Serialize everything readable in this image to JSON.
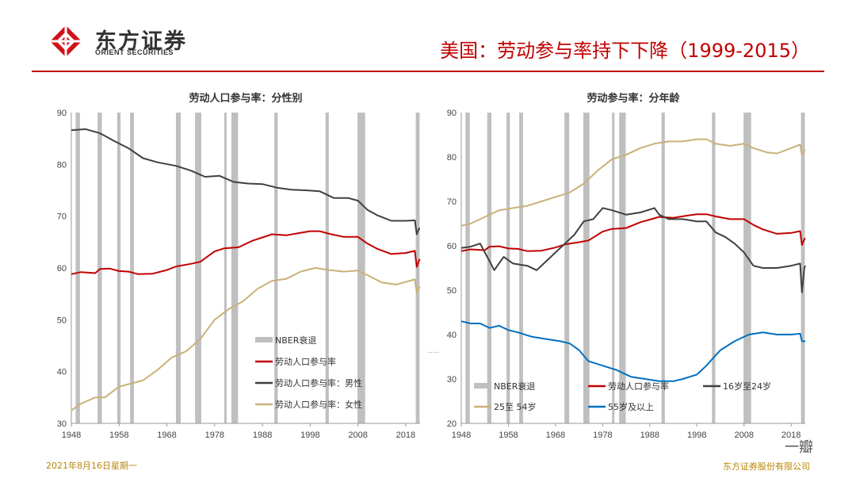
{
  "header": {
    "logo_cn": "东方证券",
    "logo_en": "ORIENT SECURITIES",
    "title": "美国：劳动参与率持下下降（1999-2015）",
    "brand_color": "#c00000"
  },
  "footer": {
    "date": "2021年8月16日星期一",
    "company": "东方证券股份有限公司",
    "watermark": "一瓣"
  },
  "chart_data": [
    {
      "type": "line",
      "title": "劳动人口参与率：分性别",
      "xlim": [
        1948,
        2021
      ],
      "ylim": [
        30,
        90
      ],
      "xticks": [
        1948,
        1958,
        1968,
        1978,
        1988,
        1998,
        2008,
        2018
      ],
      "yticks": [
        30,
        40,
        50,
        60,
        70,
        80,
        90
      ],
      "recessions": [
        [
          1948.9,
          1949.8
        ],
        [
          1953.5,
          1954.4
        ],
        [
          1957.6,
          1958.3
        ],
        [
          1960.3,
          1961.1
        ],
        [
          1969.9,
          1970.9
        ],
        [
          1973.9,
          1975.2
        ],
        [
          1980.0,
          1980.5
        ],
        [
          1981.5,
          1982.9
        ],
        [
          1990.5,
          1991.2
        ],
        [
          2001.2,
          2001.9
        ],
        [
          2007.9,
          2009.5
        ],
        [
          2020.1,
          2020.9
        ]
      ],
      "legend": [
        {
          "name": "NBER衰退",
          "color": "#bfbfbf",
          "kind": "bar"
        },
        {
          "name": "劳动人口参与率",
          "color": "#c00000",
          "kind": "line"
        },
        {
          "name": "劳动人口参与率：男性",
          "color": "#404040",
          "kind": "line"
        },
        {
          "name": "劳动人口参与率：女性",
          "color": "#c8b27a",
          "kind": "line"
        }
      ],
      "series": [
        {
          "name": "劳动人口参与率",
          "color": "#c00000",
          "x": [
            1948,
            1950,
            1953,
            1954,
            1956,
            1958,
            1960,
            1962,
            1965,
            1968,
            1970,
            1973,
            1975,
            1978,
            1980,
            1983,
            1986,
            1988,
            1990,
            1993,
            1996,
            1998,
            2000,
            2002,
            2005,
            2008,
            2010,
            2012,
            2015,
            2018,
            2019.9,
            2020.3,
            2020.8,
            2021
          ],
          "y": [
            58.8,
            59.2,
            59.0,
            59.8,
            59.9,
            59.4,
            59.3,
            58.8,
            58.9,
            59.6,
            60.3,
            60.8,
            61.2,
            63.2,
            63.8,
            64.0,
            65.3,
            65.9,
            66.5,
            66.3,
            66.8,
            67.1,
            67.1,
            66.6,
            66.0,
            66.0,
            64.7,
            63.7,
            62.7,
            62.9,
            63.3,
            60.2,
            61.5,
            61.7
          ]
        },
        {
          "name": "劳动人口参与率：男性",
          "color": "#404040",
          "x": [
            1948,
            1951,
            1954,
            1957,
            1960,
            1963,
            1966,
            1970,
            1973,
            1976,
            1979,
            1982,
            1985,
            1988,
            1991,
            1994,
            1997,
            2000,
            2003,
            2006,
            2008,
            2010,
            2012,
            2015,
            2018,
            2019.9,
            2020.3,
            2020.8,
            2021
          ],
          "y": [
            86.6,
            86.8,
            86.0,
            84.5,
            83.1,
            81.2,
            80.4,
            79.7,
            78.8,
            77.6,
            77.8,
            76.6,
            76.3,
            76.2,
            75.5,
            75.1,
            75.0,
            74.8,
            73.5,
            73.5,
            73.0,
            71.2,
            70.2,
            69.1,
            69.1,
            69.2,
            66.5,
            67.6,
            67.6
          ]
        },
        {
          "name": "劳动人口参与率：女性",
          "color": "#c8b27a",
          "x": [
            1948,
            1950,
            1953,
            1955,
            1958,
            1961,
            1963,
            1966,
            1969,
            1972,
            1975,
            1978,
            1981,
            1984,
            1987,
            1990,
            1993,
            1996,
            1999,
            2002,
            2005,
            2008,
            2010,
            2013,
            2016,
            2019.9,
            2020.3,
            2020.8,
            2021
          ],
          "y": [
            32.5,
            33.8,
            35.0,
            35.0,
            37.1,
            37.8,
            38.3,
            40.3,
            42.7,
            43.9,
            46.3,
            50.0,
            52.1,
            53.6,
            56.0,
            57.5,
            57.9,
            59.3,
            60.0,
            59.6,
            59.3,
            59.5,
            58.6,
            57.2,
            56.8,
            57.8,
            55.2,
            56.2,
            56.3
          ]
        }
      ]
    },
    {
      "type": "line",
      "title": "劳动参与率：分年龄",
      "xlim": [
        1948,
        2021
      ],
      "ylim": [
        20,
        90
      ],
      "xticks": [
        1948,
        1958,
        1968,
        1978,
        1988,
        1998,
        2008,
        2018
      ],
      "yticks": [
        20,
        30,
        40,
        50,
        60,
        70,
        80,
        90
      ],
      "recessions": [
        [
          1948.9,
          1949.8
        ],
        [
          1953.5,
          1954.4
        ],
        [
          1957.6,
          1958.3
        ],
        [
          1960.3,
          1961.1
        ],
        [
          1969.9,
          1970.9
        ],
        [
          1973.9,
          1975.2
        ],
        [
          1980.0,
          1980.5
        ],
        [
          1981.5,
          1982.9
        ],
        [
          1990.5,
          1991.2
        ],
        [
          2001.2,
          2001.9
        ],
        [
          2007.9,
          2009.5
        ],
        [
          2020.1,
          2020.9
        ]
      ],
      "legend": [
        {
          "name": "NBER衰退",
          "color": "#bfbfbf",
          "kind": "bar"
        },
        {
          "name": "劳动人口参与率",
          "color": "#c00000",
          "kind": "line"
        },
        {
          "name": "16岁至24岁",
          "color": "#404040",
          "kind": "line"
        },
        {
          "name": "25至 54岁",
          "color": "#c8b27a",
          "kind": "line"
        },
        {
          "name": "55岁及以上",
          "color": "#0070c0",
          "kind": "line"
        }
      ],
      "series": [
        {
          "name": "劳动人口参与率",
          "color": "#c00000",
          "x": [
            1948,
            1950,
            1953,
            1954,
            1956,
            1958,
            1960,
            1962,
            1965,
            1968,
            1970,
            1973,
            1975,
            1978,
            1980,
            1983,
            1986,
            1988,
            1990,
            1993,
            1996,
            1998,
            2000,
            2002,
            2005,
            2008,
            2010,
            2012,
            2015,
            2018,
            2019.9,
            2020.3,
            2020.8,
            2021
          ],
          "y": [
            58.8,
            59.2,
            59.0,
            59.8,
            59.9,
            59.4,
            59.3,
            58.8,
            58.9,
            59.6,
            60.3,
            60.8,
            61.2,
            63.2,
            63.8,
            64.0,
            65.3,
            65.9,
            66.5,
            66.3,
            66.8,
            67.1,
            67.1,
            66.6,
            66.0,
            66.0,
            64.7,
            63.7,
            62.7,
            62.9,
            63.3,
            60.2,
            61.5,
            61.7
          ]
        },
        {
          "name": "16岁至24岁",
          "color": "#404040",
          "x": [
            1948,
            1950,
            1952,
            1954,
            1955,
            1957,
            1959,
            1962,
            1964,
            1966,
            1968,
            1970,
            1972,
            1974,
            1976,
            1978,
            1980,
            1983,
            1986,
            1989,
            1990,
            1992,
            1995,
            1998,
            2000,
            2002,
            2004,
            2006,
            2008,
            2010,
            2012,
            2015,
            2018,
            2019.9,
            2020.3,
            2020.8,
            2021
          ],
          "y": [
            59.5,
            59.8,
            60.5,
            56.5,
            54.5,
            57.5,
            56.0,
            55.5,
            54.5,
            56.5,
            58.5,
            60.5,
            62.5,
            65.5,
            66.0,
            68.5,
            68.0,
            67.0,
            67.5,
            68.5,
            67.0,
            66.0,
            66.0,
            65.5,
            65.5,
            63.0,
            62.0,
            60.5,
            58.5,
            55.5,
            55.0,
            55.0,
            55.5,
            56.0,
            49.5,
            55.0,
            55.5
          ]
        },
        {
          "name": "25至 54岁",
          "color": "#c8b27a",
          "x": [
            1948,
            1950,
            1953,
            1956,
            1959,
            1962,
            1965,
            1968,
            1971,
            1974,
            1977,
            1980,
            1983,
            1986,
            1989,
            1992,
            1995,
            1998,
            2000,
            2002,
            2005,
            2008,
            2010,
            2013,
            2015,
            2018,
            2019.9,
            2020.3,
            2020.8,
            2021
          ],
          "y": [
            64.5,
            65.0,
            66.5,
            68.0,
            68.5,
            69.0,
            70.0,
            71.0,
            72.0,
            74.0,
            77.0,
            79.5,
            80.5,
            82.0,
            83.0,
            83.5,
            83.5,
            84.0,
            84.0,
            83.0,
            82.5,
            83.0,
            82.0,
            81.0,
            80.8,
            82.0,
            82.8,
            80.5,
            81.5,
            81.7
          ]
        },
        {
          "name": "55岁及以上",
          "color": "#0070c0",
          "x": [
            1948,
            1950,
            1952,
            1954,
            1956,
            1958,
            1960,
            1963,
            1966,
            1969,
            1971,
            1973,
            1975,
            1978,
            1981,
            1984,
            1987,
            1990,
            1993,
            1995,
            1998,
            2000,
            2003,
            2006,
            2009,
            2012,
            2015,
            2018,
            2019.9,
            2020.3,
            2020.8,
            2021
          ],
          "y": [
            43.0,
            42.5,
            42.5,
            41.5,
            42.0,
            41.0,
            40.5,
            39.5,
            39.0,
            38.5,
            38.0,
            36.5,
            34.0,
            33.0,
            32.0,
            30.5,
            30.0,
            29.5,
            29.5,
            30.0,
            31.0,
            33.0,
            36.5,
            38.5,
            40.0,
            40.5,
            40.0,
            40.0,
            40.2,
            38.5,
            38.5,
            38.5
          ]
        }
      ]
    }
  ]
}
